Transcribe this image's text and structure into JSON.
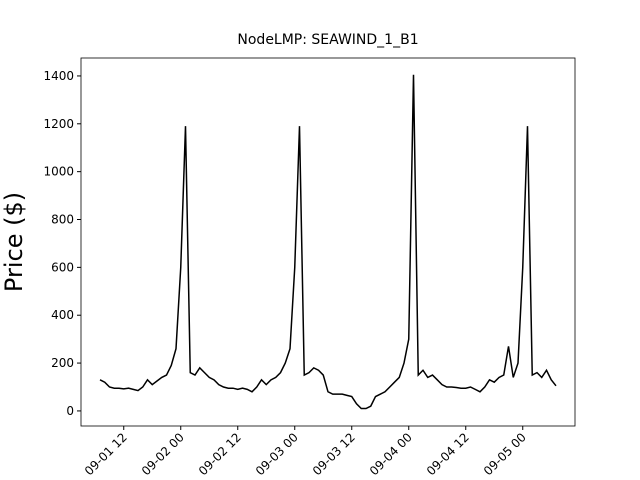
{
  "chart_data": {
    "type": "line",
    "title": "NodeLMP: SEAWIND_1_B1",
    "y_label": "Price ($)",
    "x": [
      "09-01 07",
      "09-01 08",
      "09-01 09",
      "09-01 10",
      "09-01 11",
      "09-01 12",
      "09-01 13",
      "09-01 14",
      "09-01 15",
      "09-01 16",
      "09-01 17",
      "09-01 18",
      "09-01 19",
      "09-01 20",
      "09-01 21",
      "09-01 22",
      "09-01 23",
      "09-02 00",
      "09-02 01",
      "09-02 02",
      "09-02 03",
      "09-02 04",
      "09-02 05",
      "09-02 06",
      "09-02 07",
      "09-02 08",
      "09-02 09",
      "09-02 10",
      "09-02 11",
      "09-02 12",
      "09-02 13",
      "09-02 14",
      "09-02 15",
      "09-02 16",
      "09-02 17",
      "09-02 18",
      "09-02 19",
      "09-02 20",
      "09-02 21",
      "09-02 22",
      "09-02 23",
      "09-03 00",
      "09-03 01",
      "09-03 02",
      "09-03 03",
      "09-03 04",
      "09-03 05",
      "09-03 06",
      "09-03 07",
      "09-03 08",
      "09-03 09",
      "09-03 10",
      "09-03 11",
      "09-03 12",
      "09-03 13",
      "09-03 14",
      "09-03 15",
      "09-03 16",
      "09-03 17",
      "09-03 18",
      "09-03 19",
      "09-03 20",
      "09-03 21",
      "09-03 22",
      "09-03 23",
      "09-04 00",
      "09-04 01",
      "09-04 02",
      "09-04 03",
      "09-04 04",
      "09-04 05",
      "09-04 06",
      "09-04 07",
      "09-04 08",
      "09-04 09",
      "09-04 10",
      "09-04 11",
      "09-04 12",
      "09-04 13",
      "09-04 14",
      "09-04 15",
      "09-04 16",
      "09-04 17",
      "09-04 18",
      "09-04 19",
      "09-04 20",
      "09-04 21",
      "09-04 22",
      "09-04 23",
      "09-05 00",
      "09-05 01",
      "09-05 02",
      "09-05 03",
      "09-05 04",
      "09-05 05",
      "09-05 06",
      "09-05 07"
    ],
    "series": [
      {
        "name": "SEAWIND_1_B1",
        "color": "#000000",
        "values": [
          130,
          120,
          100,
          95,
          95,
          92,
          95,
          90,
          85,
          100,
          130,
          110,
          125,
          140,
          150,
          190,
          260,
          600,
          1190,
          160,
          150,
          180,
          160,
          140,
          130,
          110,
          100,
          95,
          95,
          90,
          95,
          90,
          80,
          100,
          130,
          110,
          130,
          140,
          160,
          200,
          260,
          600,
          1190,
          150,
          160,
          180,
          170,
          150,
          80,
          70,
          70,
          70,
          65,
          60,
          30,
          10,
          10,
          20,
          60,
          70,
          80,
          100,
          120,
          140,
          200,
          300,
          1405,
          150,
          170,
          140,
          150,
          130,
          110,
          100,
          100,
          98,
          95,
          95,
          100,
          90,
          80,
          100,
          130,
          120,
          140,
          150,
          270,
          140,
          200,
          600,
          1190,
          150,
          160,
          140,
          170,
          130,
          105
        ]
      }
    ],
    "xlim": [
      "09-01 03",
      "09-05 11"
    ],
    "xticks": [
      "09-01 12",
      "09-02 00",
      "09-02 12",
      "09-03 00",
      "09-03 12",
      "09-04 00",
      "09-04 12",
      "09-05 00"
    ],
    "ylim": [
      -63,
      1475
    ],
    "yticks": [
      0,
      200,
      400,
      600,
      800,
      1000,
      1200,
      1400
    ]
  }
}
